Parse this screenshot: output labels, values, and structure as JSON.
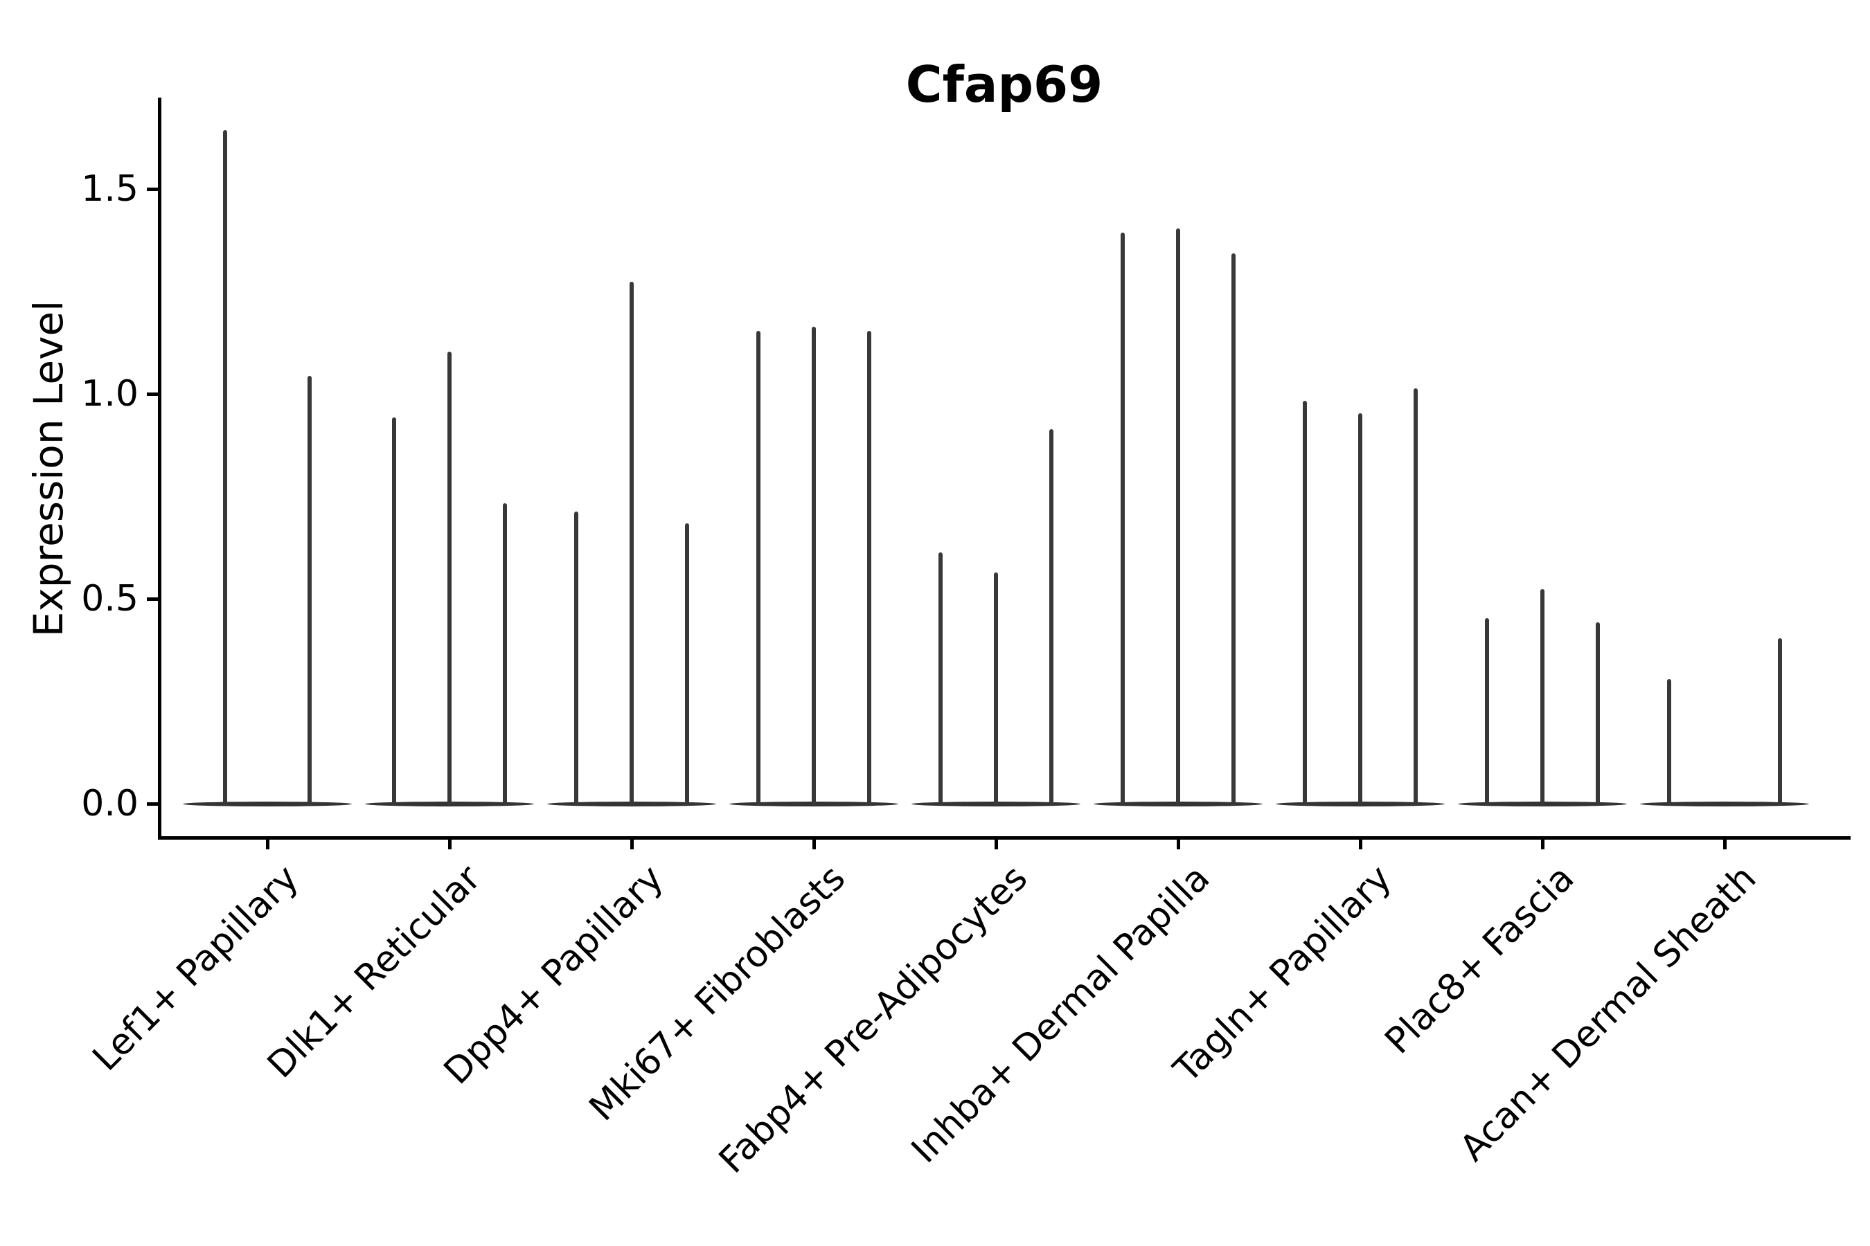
{
  "figure": {
    "title": "Cfap69",
    "background": "#ffffff"
  },
  "axes": {
    "ylabel": "Expression Level",
    "ytick_labels": [
      "0.0",
      "0.5",
      "1.0",
      "1.5"
    ]
  },
  "colors": {
    "spine": "#000000",
    "violin": "#383838",
    "baseline_violin": "#333333",
    "text": "#000000",
    "background": "#ffffff"
  },
  "chart_data": {
    "type": "violin",
    "title": "Cfap69",
    "xlabel": "",
    "ylabel": "Expression Level",
    "ylim": [
      0,
      1.72
    ],
    "yticks": [
      0.0,
      0.5,
      1.0,
      1.5
    ],
    "grid": false,
    "legend": "none",
    "style_note": "Seurat-style expression violin plot; violins are needle-thin spikes rising from a flat lens-shaped mass at 0 (most cells have zero expression). Groups contain 2-3 adjacent violins; a null maximum means a flat violin with no spike.",
    "categories": [
      "Lef1+ Papillary",
      "Dlk1+ Reticular",
      "Dpp4+ Papillary",
      "Mki67+ Fibroblasts",
      "Fabp4+ Pre-Adipocytes",
      "Inhba+ Dermal Papilla",
      "Tagln+ Papillary",
      "Plac8+ Fascia",
      "Acan+ Dermal Sheath"
    ],
    "groups": [
      {
        "category": "Lef1+ Papillary",
        "violin_maxima": [
          1.64,
          1.04
        ]
      },
      {
        "category": "Dlk1+ Reticular",
        "violin_maxima": [
          0.94,
          1.1,
          0.73
        ]
      },
      {
        "category": "Dpp4+ Papillary",
        "violin_maxima": [
          0.71,
          1.27,
          0.68
        ]
      },
      {
        "category": "Mki67+ Fibroblasts",
        "violin_maxima": [
          1.15,
          1.16,
          1.15
        ]
      },
      {
        "category": "Fabp4+ Pre-Adipocytes",
        "violin_maxima": [
          0.61,
          0.56,
          0.91
        ]
      },
      {
        "category": "Inhba+ Dermal Papilla",
        "violin_maxima": [
          1.39,
          1.4,
          1.34
        ]
      },
      {
        "category": "Tagln+ Papillary",
        "violin_maxima": [
          0.98,
          0.95,
          1.01
        ]
      },
      {
        "category": "Plac8+ Fascia",
        "violin_maxima": [
          0.45,
          0.52,
          0.44
        ]
      },
      {
        "category": "Acan+ Dermal Sheath",
        "violin_maxima": [
          0.3,
          null,
          0.4
        ]
      }
    ]
  }
}
